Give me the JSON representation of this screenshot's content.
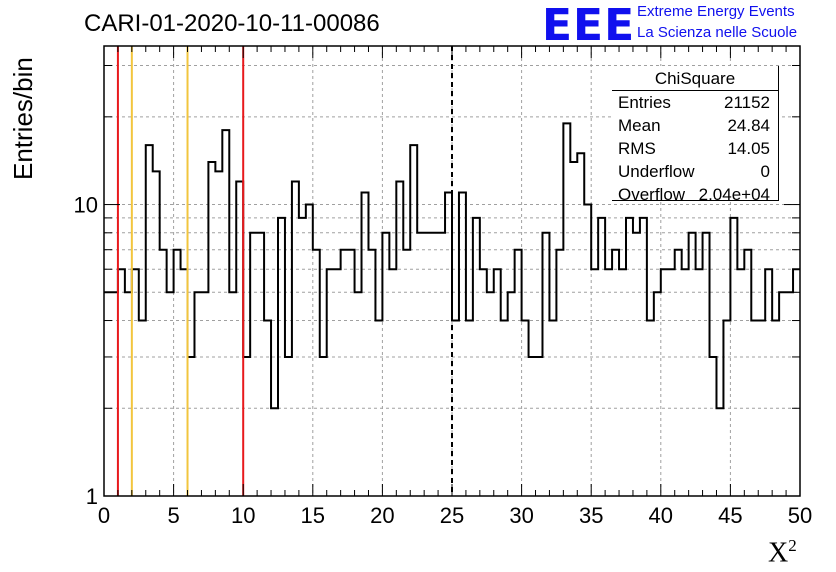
{
  "title": "CARI-01-2020-10-11-00086",
  "logo": {
    "text": "EEE",
    "line1": "Extreme Energy Events",
    "line2": "La Scienza nelle Scuole",
    "color": "#1010ee"
  },
  "stats": {
    "title": "ChiSquare",
    "rows": [
      {
        "label": "Entries",
        "value": "21152"
      },
      {
        "label": "Mean",
        "value": "24.84"
      },
      {
        "label": "RMS",
        "value": "14.05"
      },
      {
        "label": "Underflow",
        "value": "0"
      },
      {
        "label": "Overflow",
        "value": "2.04e+04"
      }
    ]
  },
  "chart_data": {
    "type": "histogram",
    "title": "CARI-01-2020-10-11-00086",
    "xlabel": "X",
    "xlabel_sup": "2",
    "ylabel": "Entries/bin",
    "xlim": [
      0,
      50
    ],
    "ylim": [
      1,
      35
    ],
    "yscale": "log",
    "grid": true,
    "bin_width": 0.5,
    "x_ticks": [
      "0",
      "5",
      "10",
      "15",
      "20",
      "25",
      "30",
      "35",
      "40",
      "45",
      "50"
    ],
    "y_ticks": [
      "1",
      "10"
    ],
    "values": [
      5,
      5,
      6,
      5,
      6,
      4,
      16,
      13,
      7,
      5,
      7,
      6,
      3,
      5,
      5,
      14,
      13,
      18,
      5,
      12,
      3,
      8,
      8,
      4,
      2,
      9,
      3,
      12,
      9,
      10,
      7,
      3,
      6,
      6,
      7,
      7,
      5,
      11,
      7,
      4,
      8,
      6,
      12,
      7,
      16,
      8,
      8,
      8,
      8,
      11,
      4,
      11,
      4,
      9,
      6,
      5,
      6,
      4,
      5,
      7,
      4,
      3,
      3,
      8,
      4,
      7,
      19,
      14,
      15,
      10,
      6,
      9,
      6,
      7,
      6,
      9,
      8,
      9,
      4,
      5,
      6,
      6,
      7,
      6,
      8,
      6,
      8,
      3,
      2,
      4,
      9,
      6,
      7,
      4,
      4,
      6,
      4,
      5,
      5,
      6
    ],
    "vertical_lines": [
      {
        "x": 1,
        "color": "#e8191c",
        "style": "solid"
      },
      {
        "x": 2,
        "color": "#f2c53d",
        "style": "solid"
      },
      {
        "x": 6,
        "color": "#f2c53d",
        "style": "solid"
      },
      {
        "x": 10,
        "color": "#e8191c",
        "style": "solid"
      },
      {
        "x": 25,
        "color": "#000000",
        "style": "dashed"
      }
    ]
  }
}
